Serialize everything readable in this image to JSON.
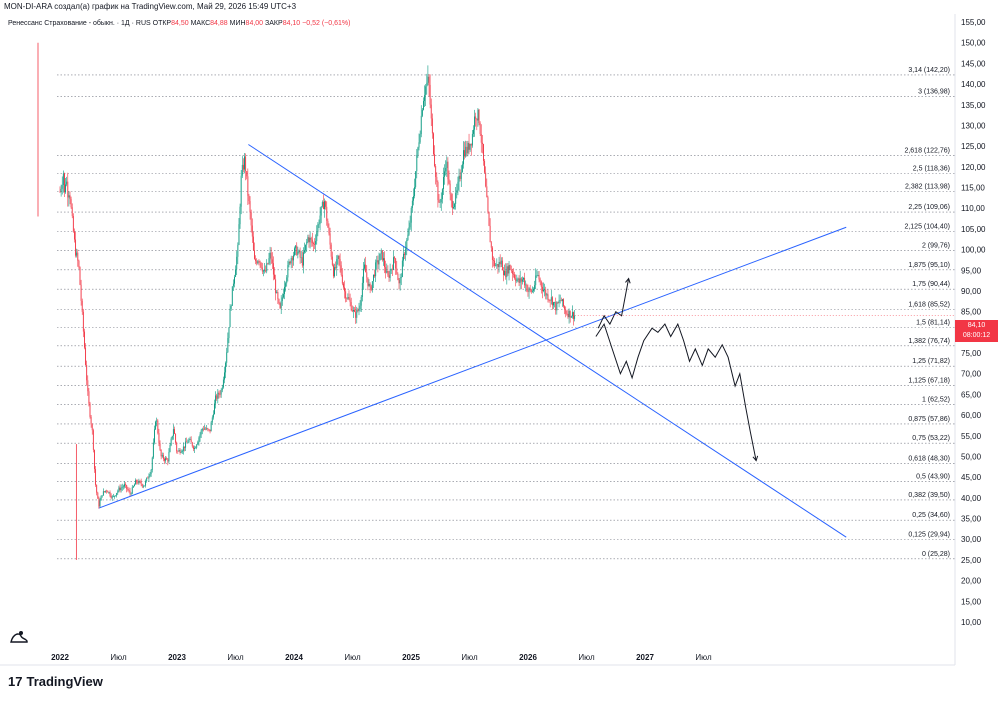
{
  "header": {
    "text": "MON-DI-ARA создал(а) график на TradingView.com, Май 29, 2026 15:49 UTC+3"
  },
  "legend": {
    "symbol": "Ренессанс Страхование - обыкн. · 1Д · RUS",
    "open_label": "ОТКР",
    "open": "84,50",
    "high_label": "МАКС",
    "high": "84,88",
    "low_label": "МИН",
    "low": "84,00",
    "close_label": "ЗАКР",
    "close": "84,10",
    "change": "−0,52 (−0,61%)"
  },
  "price_tag": {
    "price": "84,10",
    "timer": "08:00:12"
  },
  "footer": {
    "logo_text": "TradingView"
  },
  "colors": {
    "up": "#089981",
    "down": "#f23645",
    "trend": "#2962ff",
    "fib": "#787b86"
  },
  "chart_data": {
    "type": "candlestick",
    "y_axis": {
      "range": [
        7,
        157
      ],
      "ticks": [
        "155,00",
        "150,00",
        "145,00",
        "140,00",
        "135,00",
        "130,00",
        "125,00",
        "120,00",
        "115,00",
        "110,00",
        "105,00",
        "100,00",
        "95,00",
        "90,00",
        "85,00",
        "80,00",
        "75,00",
        "70,00",
        "65,00",
        "60,00",
        "55,00",
        "50,00",
        "45,00",
        "40,00",
        "35,00",
        "30,00",
        "25,00",
        "20,00",
        "15,00",
        "10,00"
      ]
    },
    "x_axis": {
      "labels": [
        {
          "text": "2022",
          "bold": true
        },
        {
          "text": "Июл",
          "bold": false
        },
        {
          "text": "2023",
          "bold": true
        },
        {
          "text": "Июл",
          "bold": false
        },
        {
          "text": "2024",
          "bold": true
        },
        {
          "text": "Июл",
          "bold": false
        },
        {
          "text": "2025",
          "bold": true
        },
        {
          "text": "Июл",
          "bold": false
        },
        {
          "text": "2026",
          "bold": true
        },
        {
          "text": "Июл",
          "bold": false
        },
        {
          "text": "2027",
          "bold": true
        },
        {
          "text": "Июл",
          "bold": false
        }
      ]
    },
    "fib_levels": [
      {
        "label": "3,14 (142,20)",
        "price": 142.2
      },
      {
        "label": "3 (136,98)",
        "price": 136.98
      },
      {
        "label": "2,618 (122,76)",
        "price": 122.76
      },
      {
        "label": "2,5 (118,36)",
        "price": 118.36
      },
      {
        "label": "2,382 (113,98)",
        "price": 113.98
      },
      {
        "label": "2,25 (109,06)",
        "price": 109.06
      },
      {
        "label": "2,125 (104,40)",
        "price": 104.4
      },
      {
        "label": "2 (99,76)",
        "price": 99.76
      },
      {
        "label": "1,875 (95,10)",
        "price": 95.1
      },
      {
        "label": "1,75 (90,44)",
        "price": 90.44
      },
      {
        "label": "1,618 (85,52)",
        "price": 85.52
      },
      {
        "label": "1,5 (81,14)",
        "price": 81.14
      },
      {
        "label": "1,382 (76,74)",
        "price": 76.74
      },
      {
        "label": "1,25 (71,82)",
        "price": 71.82
      },
      {
        "label": "1,125 (67,18)",
        "price": 67.18
      },
      {
        "label": "1 (62,52)",
        "price": 62.52
      },
      {
        "label": "0,875 (57,86)",
        "price": 57.86
      },
      {
        "label": "0,75 (53,22)",
        "price": 53.22
      },
      {
        "label": "0,618 (48,30)",
        "price": 48.3
      },
      {
        "label": "0,5 (43,90)",
        "price": 43.9
      },
      {
        "label": "0,382 (39,50)",
        "price": 39.5
      },
      {
        "label": "0,25 (34,60)",
        "price": 34.6
      },
      {
        "label": "0,125 (29,94)",
        "price": 29.94
      },
      {
        "label": "0 (25,28)",
        "price": 25.28
      }
    ],
    "price_path": [
      [
        0,
        114
      ],
      [
        0.02,
        117
      ],
      [
        0.03,
        119
      ],
      [
        0.04,
        112
      ],
      [
        0.05,
        118
      ],
      [
        0.07,
        113
      ],
      [
        0.08,
        115
      ],
      [
        0.1,
        108
      ],
      [
        0.13,
        100
      ],
      [
        0.16,
        96
      ],
      [
        0.2,
        80
      ],
      [
        0.24,
        64
      ],
      [
        0.28,
        55
      ],
      [
        0.3,
        44
      ],
      [
        0.33,
        38
      ],
      [
        0.36,
        41
      ],
      [
        0.4,
        42
      ],
      [
        0.45,
        40
      ],
      [
        0.5,
        42
      ],
      [
        0.55,
        43
      ],
      [
        0.6,
        41
      ],
      [
        0.65,
        44
      ],
      [
        0.72,
        43
      ],
      [
        0.78,
        47
      ],
      [
        0.82,
        60
      ],
      [
        0.86,
        50
      ],
      [
        0.92,
        49
      ],
      [
        0.97,
        57
      ],
      [
        1.0,
        51
      ],
      [
        1.05,
        52
      ],
      [
        1.1,
        54
      ],
      [
        1.15,
        52
      ],
      [
        1.22,
        57
      ],
      [
        1.28,
        56
      ],
      [
        1.33,
        64
      ],
      [
        1.38,
        66
      ],
      [
        1.42,
        74
      ],
      [
        1.45,
        84
      ],
      [
        1.48,
        92
      ],
      [
        1.52,
        100
      ],
      [
        1.55,
        118
      ],
      [
        1.58,
        122
      ],
      [
        1.6,
        115
      ],
      [
        1.63,
        107
      ],
      [
        1.66,
        97
      ],
      [
        1.7,
        98
      ],
      [
        1.75,
        94
      ],
      [
        1.8,
        99
      ],
      [
        1.85,
        89
      ],
      [
        1.88,
        85
      ],
      [
        1.92,
        92
      ],
      [
        1.97,
        98
      ],
      [
        2.02,
        100
      ],
      [
        2.07,
        97
      ],
      [
        2.12,
        103
      ],
      [
        2.17,
        101
      ],
      [
        2.22,
        108
      ],
      [
        2.26,
        112
      ],
      [
        2.3,
        103
      ],
      [
        2.34,
        94
      ],
      [
        2.38,
        98
      ],
      [
        2.43,
        90
      ],
      [
        2.48,
        87
      ],
      [
        2.52,
        84
      ],
      [
        2.56,
        86
      ],
      [
        2.6,
        96
      ],
      [
        2.65,
        90
      ],
      [
        2.7,
        96
      ],
      [
        2.75,
        99
      ],
      [
        2.8,
        93
      ],
      [
        2.86,
        98
      ],
      [
        2.9,
        91
      ],
      [
        2.94,
        99
      ],
      [
        2.98,
        104
      ],
      [
        3.02,
        113
      ],
      [
        3.05,
        122
      ],
      [
        3.08,
        130
      ],
      [
        3.1,
        136
      ],
      [
        3.12,
        139
      ],
      [
        3.15,
        141
      ],
      [
        3.18,
        128
      ],
      [
        3.21,
        119
      ],
      [
        3.24,
        110
      ],
      [
        3.27,
        115
      ],
      [
        3.3,
        122
      ],
      [
        3.34,
        111
      ],
      [
        3.38,
        112
      ],
      [
        3.42,
        118
      ],
      [
        3.45,
        124
      ],
      [
        3.48,
        124
      ],
      [
        3.52,
        127
      ],
      [
        3.55,
        133
      ],
      [
        3.58,
        132
      ],
      [
        3.61,
        124
      ],
      [
        3.64,
        114
      ],
      [
        3.67,
        104
      ],
      [
        3.7,
        97
      ],
      [
        3.73,
        96
      ],
      [
        3.77,
        97
      ],
      [
        3.8,
        94
      ],
      [
        3.84,
        96
      ],
      [
        3.88,
        94
      ],
      [
        3.92,
        92
      ],
      [
        3.96,
        93
      ],
      [
        4.0,
        90
      ],
      [
        4.04,
        90
      ],
      [
        4.08,
        94
      ],
      [
        4.12,
        91
      ],
      [
        4.16,
        89
      ],
      [
        4.2,
        88
      ],
      [
        4.24,
        86
      ],
      [
        4.28,
        88
      ],
      [
        4.32,
        85
      ],
      [
        4.36,
        84.5
      ],
      [
        4.4,
        84.1
      ]
    ],
    "trendlines": [
      {
        "from": [
          1.61,
          125.4
        ],
        "to": [
          6.72,
          30.5
        ]
      },
      {
        "from": [
          0.33,
          37.5
        ],
        "to": [
          6.72,
          105.4
        ]
      }
    ],
    "projection_arrows": [
      [
        [
          4.6,
          81
        ],
        [
          4.65,
          84
        ],
        [
          4.7,
          82
        ],
        [
          4.75,
          85
        ],
        [
          4.8,
          84
        ],
        [
          4.86,
          93
        ]
      ],
      [
        [
          4.58,
          79
        ],
        [
          4.65,
          82
        ],
        [
          4.72,
          76
        ],
        [
          4.79,
          70
        ],
        [
          4.84,
          73
        ],
        [
          4.89,
          69
        ],
        [
          4.94,
          74
        ],
        [
          4.99,
          78
        ],
        [
          5.06,
          81
        ],
        [
          5.11,
          80
        ],
        [
          5.17,
          82
        ],
        [
          5.22,
          79
        ],
        [
          5.28,
          82
        ],
        [
          5.33,
          78
        ],
        [
          5.38,
          73
        ],
        [
          5.43,
          76
        ],
        [
          5.49,
          72
        ],
        [
          5.54,
          76
        ],
        [
          5.6,
          74
        ],
        [
          5.66,
          77
        ],
        [
          5.71,
          74
        ],
        [
          5.77,
          67
        ],
        [
          5.81,
          70
        ],
        [
          5.86,
          62
        ],
        [
          5.9,
          56
        ],
        [
          5.95,
          49
        ]
      ]
    ]
  }
}
